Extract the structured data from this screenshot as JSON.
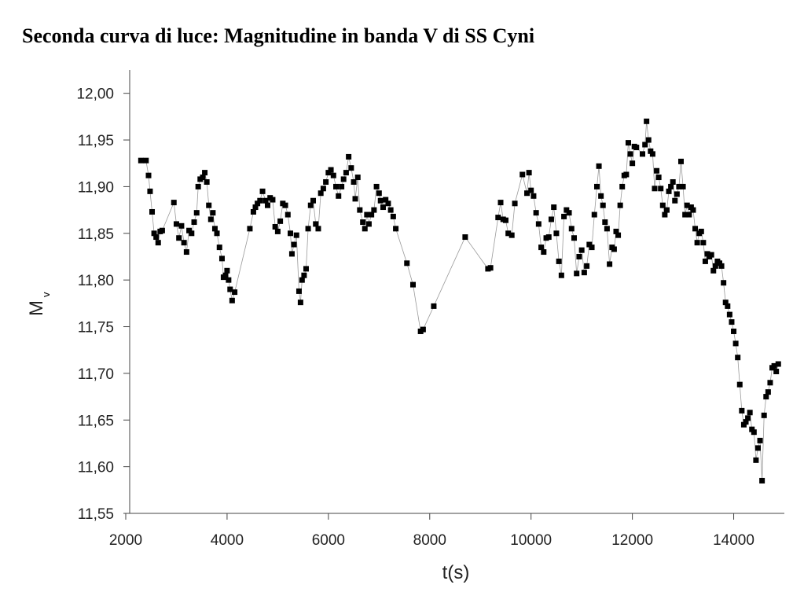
{
  "chart_data": {
    "type": "line",
    "title": "Seconda curva di luce: Magnitudine in banda V di SS Cyni",
    "x_label": "t(s)",
    "y_label": "M",
    "y_label_sub": "v",
    "line_color": "#9a9a9a",
    "marker_color": "#000000",
    "xlim": [
      2000,
      15000
    ],
    "xticks": [
      2000,
      4000,
      6000,
      8000,
      10000,
      12000,
      14000
    ],
    "ylim": [
      11.55,
      12.025
    ],
    "yticks": [
      {
        "value": 11.55,
        "label": "11,55"
      },
      {
        "value": 11.6,
        "label": "11,60"
      },
      {
        "value": 11.65,
        "label": "11,65"
      },
      {
        "value": 11.7,
        "label": "11,70"
      },
      {
        "value": 11.75,
        "label": "11,75"
      },
      {
        "value": 11.8,
        "label": "11,80"
      },
      {
        "value": 11.85,
        "label": "11,85"
      },
      {
        "value": 11.9,
        "label": "11,90"
      },
      {
        "value": 11.95,
        "label": "11,95"
      },
      {
        "value": 12.0,
        "label": "12,00"
      }
    ],
    "x": [
      2300,
      2400,
      2450,
      2480,
      2520,
      2560,
      2600,
      2640,
      2680,
      2720,
      2950,
      3000,
      3050,
      3100,
      3150,
      3200,
      3250,
      3300,
      3350,
      3400,
      3430,
      3470,
      3520,
      3560,
      3600,
      3640,
      3680,
      3720,
      3760,
      3800,
      3850,
      3900,
      3930,
      3970,
      4000,
      4030,
      4060,
      4100,
      4150,
      4450,
      4520,
      4560,
      4600,
      4650,
      4700,
      4760,
      4800,
      4850,
      4900,
      4950,
      5000,
      5050,
      5100,
      5150,
      5200,
      5250,
      5280,
      5320,
      5370,
      5420,
      5450,
      5480,
      5520,
      5560,
      5600,
      5650,
      5700,
      5750,
      5800,
      5850,
      5900,
      5950,
      6000,
      6050,
      6100,
      6150,
      6200,
      6260,
      6300,
      6350,
      6400,
      6450,
      6500,
      6530,
      6580,
      6620,
      6680,
      6720,
      6760,
      6800,
      6850,
      6900,
      6950,
      7000,
      7030,
      7080,
      7130,
      7180,
      7230,
      7280,
      7330,
      7550,
      7670,
      7820,
      7870,
      8080,
      8700,
      9150,
      9200,
      9350,
      9400,
      9450,
      9500,
      9550,
      9620,
      9680,
      9830,
      9920,
      9960,
      10000,
      10050,
      10100,
      10150,
      10200,
      10250,
      10300,
      10350,
      10400,
      10450,
      10500,
      10550,
      10600,
      10650,
      10700,
      10750,
      10800,
      10850,
      10900,
      10950,
      11000,
      11050,
      11100,
      11150,
      11200,
      11250,
      11300,
      11340,
      11380,
      11420,
      11460,
      11500,
      11550,
      11600,
      11640,
      11680,
      11720,
      11760,
      11800,
      11840,
      11880,
      11920,
      11960,
      12000,
      12040,
      12080,
      12200,
      12250,
      12280,
      12320,
      12360,
      12400,
      12440,
      12480,
      12520,
      12560,
      12600,
      12640,
      12680,
      12720,
      12760,
      12800,
      12840,
      12880,
      12920,
      12960,
      13000,
      13040,
      13080,
      13120,
      13160,
      13200,
      13240,
      13280,
      13320,
      13360,
      13400,
      13440,
      13480,
      13520,
      13560,
      13600,
      13640,
      13680,
      13720,
      13760,
      13800,
      13840,
      13880,
      13920,
      13960,
      14000,
      14040,
      14080,
      14120,
      14160,
      14200,
      14240,
      14280,
      14320,
      14360,
      14400,
      14440,
      14480,
      14520,
      14560,
      14600,
      14640,
      14680,
      14720,
      14760,
      14800,
      14840,
      14880
    ],
    "values": [
      11.928,
      11.928,
      11.912,
      11.895,
      11.873,
      11.85,
      11.846,
      11.84,
      11.852,
      11.853,
      11.883,
      11.86,
      11.845,
      11.858,
      11.84,
      11.83,
      11.853,
      11.85,
      11.862,
      11.872,
      11.9,
      11.908,
      11.91,
      11.915,
      11.905,
      11.88,
      11.865,
      11.872,
      11.855,
      11.85,
      11.835,
      11.823,
      11.803,
      11.805,
      11.81,
      11.8,
      11.79,
      11.778,
      11.787,
      11.855,
      11.873,
      11.878,
      11.882,
      11.885,
      11.895,
      11.885,
      11.88,
      11.888,
      11.886,
      11.857,
      11.852,
      11.863,
      11.882,
      11.88,
      11.87,
      11.85,
      11.828,
      11.838,
      11.848,
      11.788,
      11.776,
      11.8,
      11.805,
      11.812,
      11.855,
      11.88,
      11.885,
      11.86,
      11.855,
      11.893,
      11.898,
      11.905,
      11.915,
      11.918,
      11.912,
      11.9,
      11.89,
      11.9,
      11.908,
      11.915,
      11.932,
      11.92,
      11.905,
      11.887,
      11.91,
      11.875,
      11.862,
      11.855,
      11.87,
      11.86,
      11.87,
      11.875,
      11.9,
      11.893,
      11.885,
      11.878,
      11.886,
      11.882,
      11.875,
      11.868,
      11.855,
      11.818,
      11.795,
      11.745,
      11.747,
      11.772,
      11.846,
      11.812,
      11.813,
      11.867,
      11.883,
      11.865,
      11.864,
      11.85,
      11.848,
      11.882,
      11.913,
      11.893,
      11.915,
      11.896,
      11.89,
      11.872,
      11.86,
      11.835,
      11.83,
      11.845,
      11.846,
      11.865,
      11.878,
      11.85,
      11.82,
      11.805,
      11.868,
      11.875,
      11.872,
      11.855,
      11.845,
      11.807,
      11.825,
      11.832,
      11.808,
      11.815,
      11.838,
      11.835,
      11.87,
      11.9,
      11.922,
      11.89,
      11.88,
      11.862,
      11.855,
      11.817,
      11.835,
      11.833,
      11.852,
      11.848,
      11.88,
      11.9,
      11.912,
      11.913,
      11.947,
      11.935,
      11.925,
      11.943,
      11.942,
      11.935,
      11.945,
      11.97,
      11.95,
      11.938,
      11.935,
      11.898,
      11.917,
      11.91,
      11.898,
      11.88,
      11.87,
      11.875,
      11.895,
      11.9,
      11.905,
      11.885,
      11.892,
      11.9,
      11.927,
      11.9,
      11.87,
      11.88,
      11.87,
      11.878,
      11.875,
      11.855,
      11.84,
      11.85,
      11.852,
      11.84,
      11.82,
      11.828,
      11.825,
      11.827,
      11.81,
      11.815,
      11.82,
      11.818,
      11.815,
      11.797,
      11.776,
      11.772,
      11.763,
      11.755,
      11.745,
      11.732,
      11.717,
      11.688,
      11.66,
      11.645,
      11.648,
      11.652,
      11.658,
      11.64,
      11.637,
      11.607,
      11.62,
      11.628,
      11.585,
      11.655,
      11.675,
      11.68,
      11.69,
      11.706,
      11.708,
      11.702,
      11.71
    ]
  }
}
